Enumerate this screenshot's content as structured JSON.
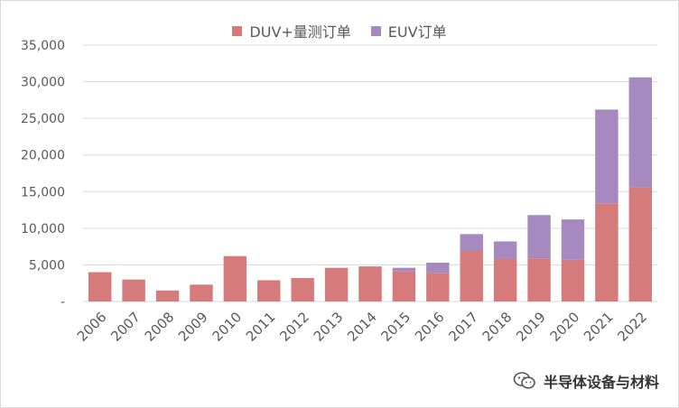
{
  "chart_data": {
    "type": "bar",
    "stacked": true,
    "categories": [
      "2006",
      "2007",
      "2008",
      "2009",
      "2010",
      "2011",
      "2012",
      "2013",
      "2014",
      "2015",
      "2016",
      "2017",
      "2018",
      "2019",
      "2020",
      "2021",
      "2022"
    ],
    "series": [
      {
        "name": "DUV+量测订单",
        "color": "#d67b7b",
        "values": [
          4000,
          3000,
          1500,
          2300,
          6200,
          2900,
          3200,
          4600,
          4700,
          4100,
          3900,
          6900,
          5800,
          5900,
          5700,
          13400,
          15600
        ]
      },
      {
        "name": "EUV订单",
        "color": "#a68abf",
        "values": [
          0,
          0,
          0,
          0,
          0,
          0,
          0,
          0,
          100,
          500,
          1400,
          2300,
          2400,
          5900,
          5500,
          12800,
          15000
        ]
      }
    ],
    "ylim": [
      0,
      35000
    ],
    "y_ticks": [
      "-",
      "5,000",
      "10,000",
      "15,000",
      "20,000",
      "25,000",
      "30,000",
      "35,000"
    ],
    "grid": true,
    "legend_position": "top"
  },
  "watermark": {
    "text": "半导体设备与材料"
  }
}
